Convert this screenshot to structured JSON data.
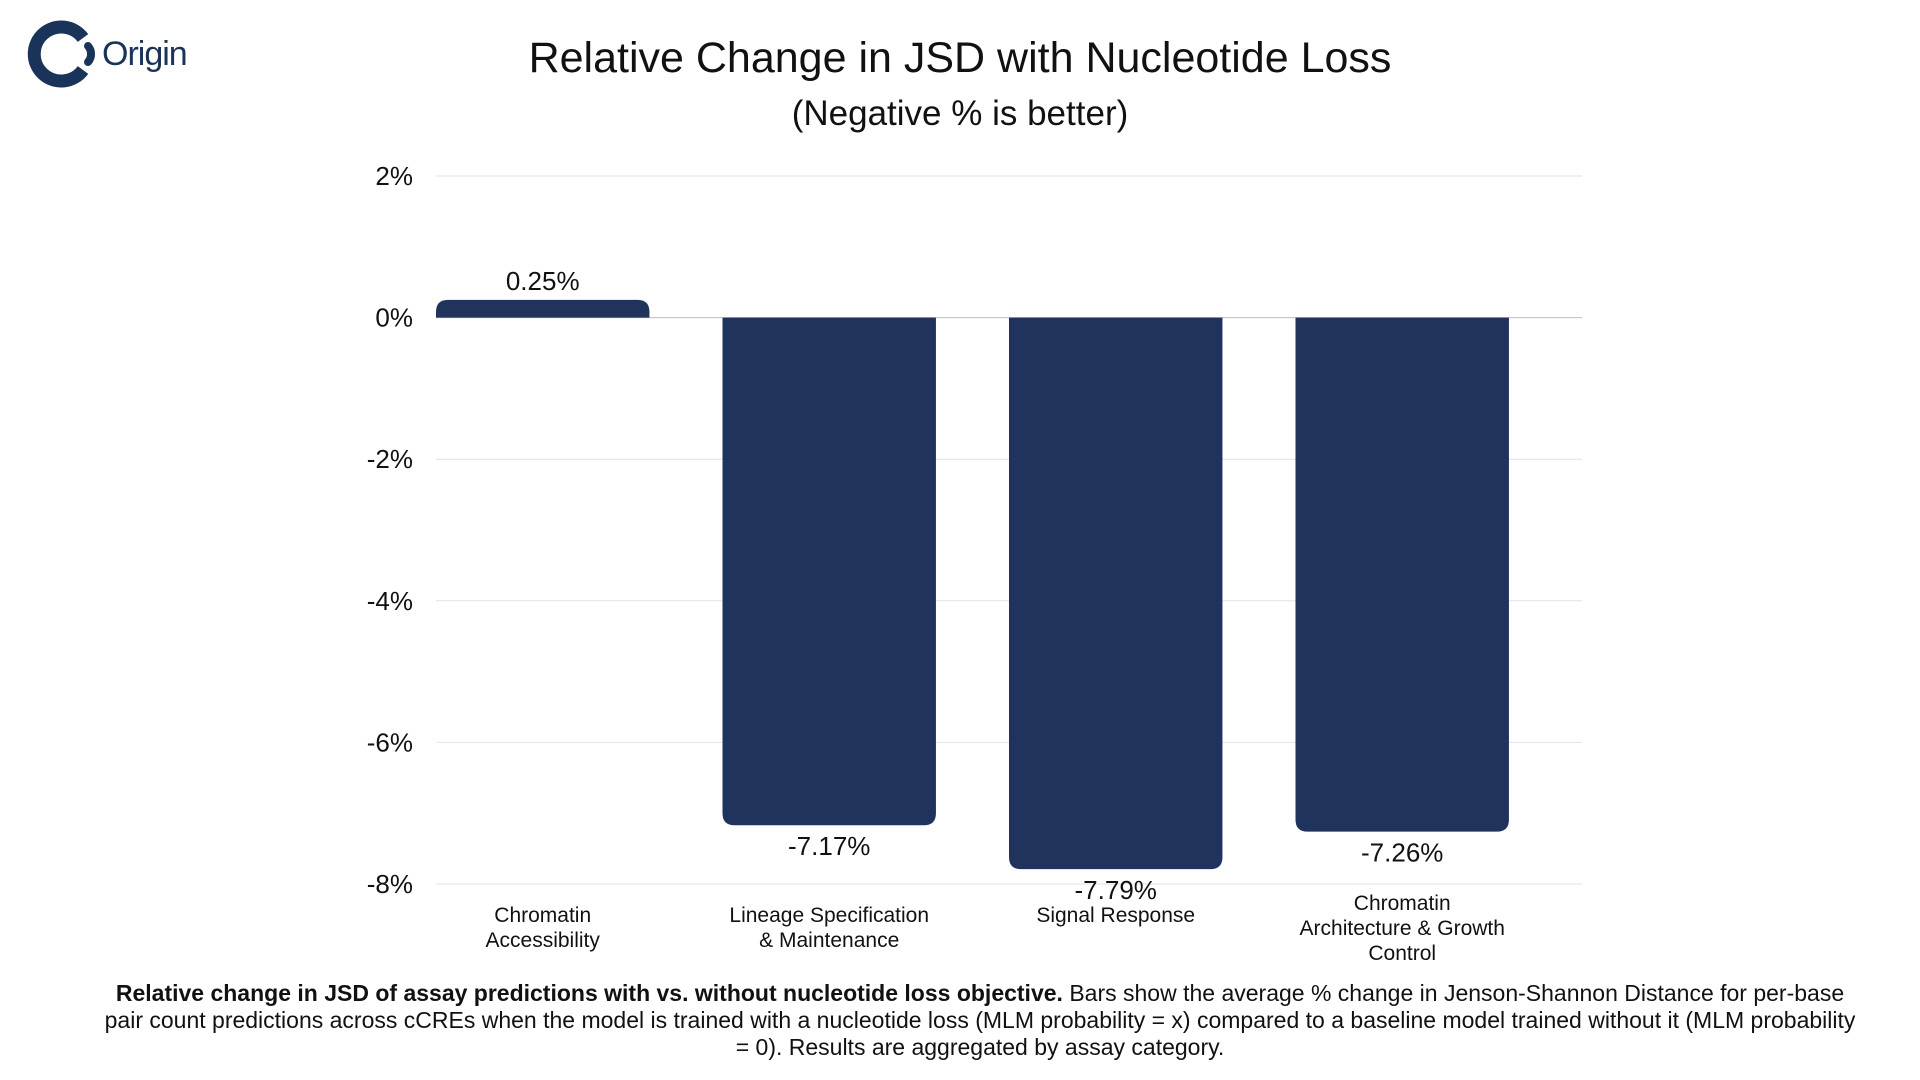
{
  "brand": {
    "name": "Origin",
    "accent_color": "#1a3359"
  },
  "header": {
    "title": "Relative Change in JSD with Nucleotide Loss",
    "subtitle": "(Negative % is better)"
  },
  "chart_data": {
    "type": "bar",
    "title": "Relative Change in JSD with Nucleotide Loss",
    "subtitle": "(Negative % is better)",
    "xlabel": "",
    "ylabel": "",
    "ylim": [
      -8,
      2
    ],
    "yticks": [
      2,
      0,
      -2,
      -4,
      -6,
      -8
    ],
    "ytick_labels": [
      "2%",
      "0%",
      "-2%",
      "-4%",
      "-6%",
      "-8%"
    ],
    "grid": true,
    "bar_color": "#20335c",
    "categories": [
      [
        "Chromatin",
        "Accessibility"
      ],
      [
        "Lineage Specification",
        "& Maintenance"
      ],
      [
        "Signal Response"
      ],
      [
        "Chromatin",
        "Architecture & Growth",
        "Control"
      ]
    ],
    "values": [
      0.25,
      -7.17,
      -7.79,
      -7.26
    ],
    "value_labels": [
      "0.25%",
      "-7.17%",
      "-7.79%",
      "-7.26%"
    ]
  },
  "caption": {
    "bold": "Relative change in JSD of assay predictions with vs. without nucleotide loss objective.",
    "text": " Bars show the average % change in Jenson-Shannon Distance for per-base pair count predictions across cCREs when the model is trained with a nucleotide loss (MLM probability = x) compared to a baseline model trained without it (MLM probability = 0). Results are aggregated by assay category."
  }
}
